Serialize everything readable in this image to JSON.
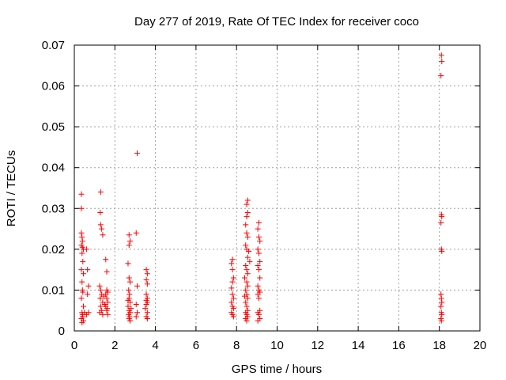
{
  "chart_data": {
    "type": "scatter",
    "title": "Day 277 of 2019, Rate Of TEC Index for receiver coco",
    "xlabel": "GPS time / hours",
    "ylabel": "ROTI / TECUs",
    "xlim": [
      0,
      20
    ],
    "ylim": [
      0,
      0.07
    ],
    "x_ticks": [
      0,
      2,
      4,
      6,
      8,
      10,
      12,
      14,
      16,
      18,
      20
    ],
    "y_ticks": [
      0,
      0.01,
      0.02,
      0.03,
      0.04,
      0.05,
      0.06,
      0.07
    ],
    "y_tick_labels": [
      "0",
      "0.01",
      "0.02",
      "0.03",
      "0.04",
      "0.05",
      "0.06",
      "0.07"
    ],
    "grid": true,
    "marker": "+",
    "color": "#ff0000",
    "series": [
      {
        "name": "ROTI",
        "points": [
          [
            0.35,
            0.0335
          ],
          [
            0.35,
            0.03
          ],
          [
            0.35,
            0.024
          ],
          [
            0.38,
            0.023
          ],
          [
            0.4,
            0.022
          ],
          [
            0.35,
            0.021
          ],
          [
            0.4,
            0.0205
          ],
          [
            0.45,
            0.02
          ],
          [
            0.38,
            0.019
          ],
          [
            0.42,
            0.017
          ],
          [
            0.35,
            0.015
          ],
          [
            0.45,
            0.014
          ],
          [
            0.38,
            0.012
          ],
          [
            0.4,
            0.01
          ],
          [
            0.42,
            0.0095
          ],
          [
            0.35,
            0.008
          ],
          [
            0.45,
            0.006
          ],
          [
            0.38,
            0.0045
          ],
          [
            0.4,
            0.004
          ],
          [
            0.42,
            0.0035
          ],
          [
            0.35,
            0.003
          ],
          [
            0.45,
            0.0025
          ],
          [
            0.38,
            0.002
          ],
          [
            0.5,
            0.0045
          ],
          [
            0.6,
            0.02
          ],
          [
            0.65,
            0.015
          ],
          [
            0.7,
            0.011
          ],
          [
            0.65,
            0.009
          ],
          [
            0.7,
            0.0045
          ],
          [
            0.6,
            0.004
          ],
          [
            1.3,
            0.034
          ],
          [
            1.28,
            0.029
          ],
          [
            1.3,
            0.026
          ],
          [
            1.35,
            0.025
          ],
          [
            1.4,
            0.0235
          ],
          [
            1.25,
            0.011
          ],
          [
            1.3,
            0.01
          ],
          [
            1.35,
            0.009
          ],
          [
            1.28,
            0.008
          ],
          [
            1.4,
            0.007
          ],
          [
            1.3,
            0.006
          ],
          [
            1.35,
            0.005
          ],
          [
            1.25,
            0.0045
          ],
          [
            1.4,
            0.004
          ],
          [
            1.45,
            0.0085
          ],
          [
            1.55,
            0.0175
          ],
          [
            1.6,
            0.0145
          ],
          [
            1.6,
            0.01
          ],
          [
            1.65,
            0.0095
          ],
          [
            1.55,
            0.009
          ],
          [
            1.6,
            0.008
          ],
          [
            1.65,
            0.007
          ],
          [
            1.55,
            0.006
          ],
          [
            1.6,
            0.005
          ],
          [
            1.65,
            0.004
          ],
          [
            1.5,
            0.0065
          ],
          [
            1.62,
            0.0055
          ],
          [
            2.7,
            0.0235
          ],
          [
            2.75,
            0.022
          ],
          [
            2.7,
            0.021
          ],
          [
            2.65,
            0.0165
          ],
          [
            2.7,
            0.013
          ],
          [
            2.75,
            0.012
          ],
          [
            2.68,
            0.01
          ],
          [
            2.72,
            0.009
          ],
          [
            2.7,
            0.008
          ],
          [
            2.75,
            0.007
          ],
          [
            2.65,
            0.006
          ],
          [
            2.7,
            0.005
          ],
          [
            2.75,
            0.0045
          ],
          [
            2.68,
            0.004
          ],
          [
            2.72,
            0.0035
          ],
          [
            2.7,
            0.003
          ],
          [
            2.75,
            0.0025
          ],
          [
            2.8,
            0.0055
          ],
          [
            2.65,
            0.0075
          ],
          [
            3.1,
            0.0435
          ],
          [
            3.05,
            0.024
          ],
          [
            3.1,
            0.011
          ],
          [
            3.05,
            0.0065
          ],
          [
            3.1,
            0.0045
          ],
          [
            3.05,
            0.0035
          ],
          [
            3.55,
            0.015
          ],
          [
            3.6,
            0.014
          ],
          [
            3.55,
            0.0125
          ],
          [
            3.6,
            0.0115
          ],
          [
            3.55,
            0.009
          ],
          [
            3.6,
            0.008
          ],
          [
            3.55,
            0.0075
          ],
          [
            3.6,
            0.007
          ],
          [
            3.55,
            0.0065
          ],
          [
            3.5,
            0.0055
          ],
          [
            3.6,
            0.0045
          ],
          [
            3.55,
            0.0035
          ],
          [
            3.6,
            0.003
          ],
          [
            7.8,
            0.0175
          ],
          [
            7.75,
            0.0165
          ],
          [
            7.8,
            0.015
          ],
          [
            7.85,
            0.013
          ],
          [
            7.8,
            0.012
          ],
          [
            7.75,
            0.0105
          ],
          [
            7.8,
            0.009
          ],
          [
            7.85,
            0.008
          ],
          [
            7.75,
            0.007
          ],
          [
            7.8,
            0.006
          ],
          [
            7.85,
            0.0055
          ],
          [
            7.75,
            0.0045
          ],
          [
            7.8,
            0.004
          ],
          [
            7.85,
            0.0035
          ],
          [
            8.55,
            0.032
          ],
          [
            8.5,
            0.031
          ],
          [
            8.55,
            0.029
          ],
          [
            8.5,
            0.028
          ],
          [
            8.45,
            0.026
          ],
          [
            8.5,
            0.024
          ],
          [
            8.55,
            0.023
          ],
          [
            8.45,
            0.021
          ],
          [
            8.5,
            0.02
          ],
          [
            8.55,
            0.018
          ],
          [
            8.45,
            0.016
          ],
          [
            8.5,
            0.015
          ],
          [
            8.55,
            0.014
          ],
          [
            8.4,
            0.013
          ],
          [
            8.5,
            0.012
          ],
          [
            8.55,
            0.011
          ],
          [
            8.45,
            0.01
          ],
          [
            8.5,
            0.009
          ],
          [
            8.55,
            0.008
          ],
          [
            8.45,
            0.007
          ],
          [
            8.5,
            0.006
          ],
          [
            8.55,
            0.005
          ],
          [
            8.45,
            0.0045
          ],
          [
            8.5,
            0.004
          ],
          [
            8.55,
            0.0035
          ],
          [
            8.45,
            0.003
          ],
          [
            8.5,
            0.0025
          ],
          [
            8.6,
            0.0195
          ],
          [
            8.65,
            0.017
          ],
          [
            8.4,
            0.0085
          ],
          [
            9.1,
            0.0265
          ],
          [
            9.05,
            0.025
          ],
          [
            9.1,
            0.023
          ],
          [
            9.15,
            0.022
          ],
          [
            9.05,
            0.02
          ],
          [
            9.1,
            0.019
          ],
          [
            9.15,
            0.017
          ],
          [
            9.05,
            0.016
          ],
          [
            9.1,
            0.015
          ],
          [
            9.15,
            0.013
          ],
          [
            9.05,
            0.011
          ],
          [
            9.1,
            0.01
          ],
          [
            9.15,
            0.0095
          ],
          [
            9.05,
            0.009
          ],
          [
            9.1,
            0.008
          ],
          [
            9.15,
            0.005
          ],
          [
            9.05,
            0.0045
          ],
          [
            9.1,
            0.004
          ],
          [
            9.15,
            0.003
          ],
          [
            9.05,
            0.0025
          ],
          [
            18.1,
            0.0675
          ],
          [
            18.12,
            0.066
          ],
          [
            18.08,
            0.0625
          ],
          [
            18.1,
            0.0285
          ],
          [
            18.12,
            0.028
          ],
          [
            18.08,
            0.0265
          ],
          [
            18.1,
            0.02
          ],
          [
            18.12,
            0.0195
          ],
          [
            18.08,
            0.009
          ],
          [
            18.1,
            0.008
          ],
          [
            18.12,
            0.007
          ],
          [
            18.08,
            0.006
          ],
          [
            18.1,
            0.0045
          ],
          [
            18.12,
            0.004
          ],
          [
            18.08,
            0.003
          ],
          [
            18.1,
            0.0025
          ]
        ]
      }
    ]
  }
}
